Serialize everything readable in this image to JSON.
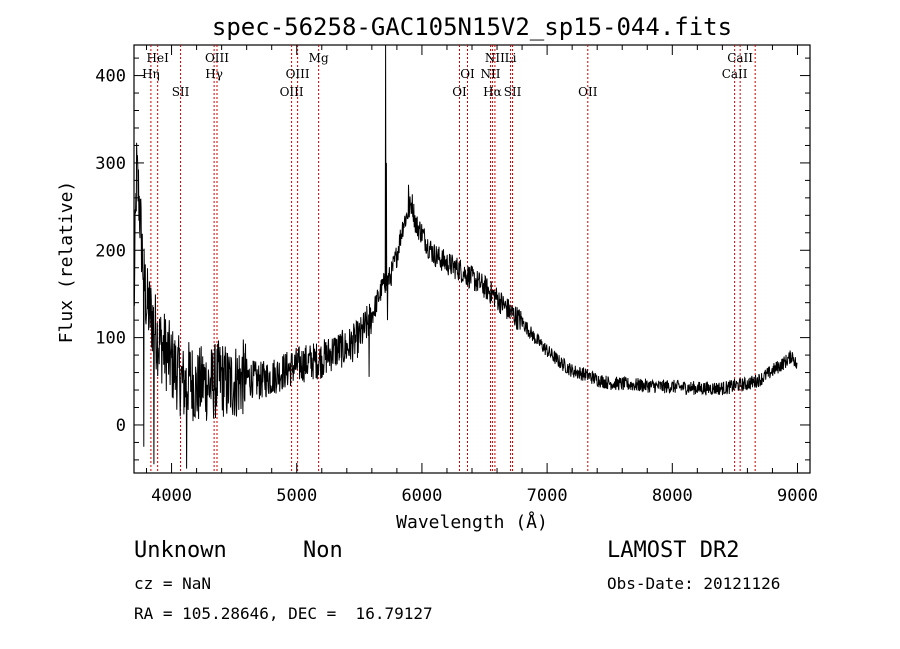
{
  "chart_data": {
    "type": "line",
    "title": "spec-56258-GAC105N15V2_sp15-044.fits",
    "xlabel": "Wavelength (Å)",
    "ylabel": "Flux (relative)",
    "xlim": [
      3700,
      9100
    ],
    "ylim": [
      -55,
      435
    ],
    "xticks": [
      4000,
      5000,
      6000,
      7000,
      8000,
      9000
    ],
    "yticks": [
      0,
      100,
      200,
      300,
      400
    ],
    "grid": false,
    "series_color": "#000000",
    "line_color": "#cc0000",
    "anchors": [
      [
        3700,
        130
      ],
      [
        3720,
        290
      ],
      [
        3740,
        260
      ],
      [
        3760,
        210
      ],
      [
        3780,
        170
      ],
      [
        3800,
        140
      ],
      [
        3850,
        120
      ],
      [
        3900,
        95
      ],
      [
        3950,
        85
      ],
      [
        4000,
        70
      ],
      [
        4050,
        60
      ],
      [
        4100,
        45
      ],
      [
        4150,
        55
      ],
      [
        4200,
        40
      ],
      [
        4250,
        50
      ],
      [
        4300,
        45
      ],
      [
        4350,
        50
      ],
      [
        4400,
        55
      ],
      [
        4450,
        45
      ],
      [
        4500,
        50
      ],
      [
        4600,
        55
      ],
      [
        4700,
        50
      ],
      [
        4800,
        55
      ],
      [
        4900,
        62
      ],
      [
        5000,
        68
      ],
      [
        5100,
        72
      ],
      [
        5200,
        75
      ],
      [
        5300,
        85
      ],
      [
        5400,
        88
      ],
      [
        5500,
        100
      ],
      [
        5600,
        125
      ],
      [
        5650,
        145
      ],
      [
        5690,
        160
      ],
      [
        5750,
        170
      ],
      [
        5800,
        195
      ],
      [
        5850,
        230
      ],
      [
        5880,
        240
      ],
      [
        5920,
        255
      ],
      [
        5950,
        230
      ],
      [
        6000,
        220
      ],
      [
        6050,
        205
      ],
      [
        6100,
        195
      ],
      [
        6200,
        185
      ],
      [
        6300,
        178
      ],
      [
        6400,
        168
      ],
      [
        6500,
        158
      ],
      [
        6600,
        145
      ],
      [
        6700,
        130
      ],
      [
        6800,
        118
      ],
      [
        6900,
        100
      ],
      [
        7000,
        85
      ],
      [
        7100,
        72
      ],
      [
        7200,
        62
      ],
      [
        7300,
        58
      ],
      [
        7400,
        52
      ],
      [
        7500,
        48
      ],
      [
        7600,
        47
      ],
      [
        7700,
        46
      ],
      [
        7800,
        45
      ],
      [
        7900,
        44
      ],
      [
        8000,
        44
      ],
      [
        8100,
        43
      ],
      [
        8200,
        42
      ],
      [
        8300,
        42
      ],
      [
        8400,
        42
      ],
      [
        8450,
        43
      ],
      [
        8500,
        45
      ],
      [
        8600,
        47
      ],
      [
        8700,
        52
      ],
      [
        8800,
        62
      ],
      [
        8900,
        72
      ],
      [
        8960,
        80
      ],
      [
        9000,
        65
      ]
    ],
    "spikes": [
      {
        "x": 5577,
        "y": 55
      },
      {
        "x": 5709,
        "y": 435
      },
      {
        "x": 5716,
        "y": 300
      },
      {
        "x": 5724,
        "y": 120
      },
      {
        "x": 5891,
        "y": 275
      },
      {
        "x": 3776,
        "y": -25
      },
      {
        "x": 3858,
        "y": -45
      },
      {
        "x": 4120,
        "y": -50
      },
      {
        "x": 9000,
        "y": 0
      }
    ],
    "lines": [
      {
        "name": "HeI",
        "x": 3889,
        "row": 0
      },
      {
        "name": "Hη",
        "x": 3835,
        "row": 1
      },
      {
        "name": "SII",
        "x": 4072,
        "row": 2
      },
      {
        "name": "OIII",
        "x": 4363,
        "row": 0
      },
      {
        "name": "Hγ",
        "x": 4340,
        "row": 1
      },
      {
        "name": "OIII",
        "x": 5007,
        "row": 1
      },
      {
        "name": "OIII",
        "x": 4959,
        "row": 2
      },
      {
        "name": "Mg",
        "x": 5175,
        "row": 0
      },
      {
        "name": "OI",
        "x": 6364,
        "row": 1
      },
      {
        "name": "OI",
        "x": 6300,
        "row": 2
      },
      {
        "name": "NII",
        "x": 6583,
        "row": 0
      },
      {
        "name": "NII",
        "x": 6548,
        "row": 1
      },
      {
        "name": "Hα",
        "x": 6563,
        "row": 2
      },
      {
        "name": "Li",
        "x": 6708,
        "row": 0
      },
      {
        "name": "SII",
        "x": 6724,
        "row": 2
      },
      {
        "name": "OII",
        "x": 7325,
        "row": 2
      },
      {
        "name": "CaII",
        "x": 8542,
        "row": 0
      },
      {
        "name": "CaII",
        "x": 8498,
        "row": 1
      },
      {
        "name": "CaII",
        "x": 8662,
        "row": -1
      }
    ]
  },
  "info": {
    "class": "Unknown",
    "subclass": "Non",
    "cz": "cz = NaN",
    "coords": "RA = 105.28646, DEC =  16.79127",
    "survey": "LAMOST DR2",
    "obsdate": "Obs-Date: 20121126"
  }
}
